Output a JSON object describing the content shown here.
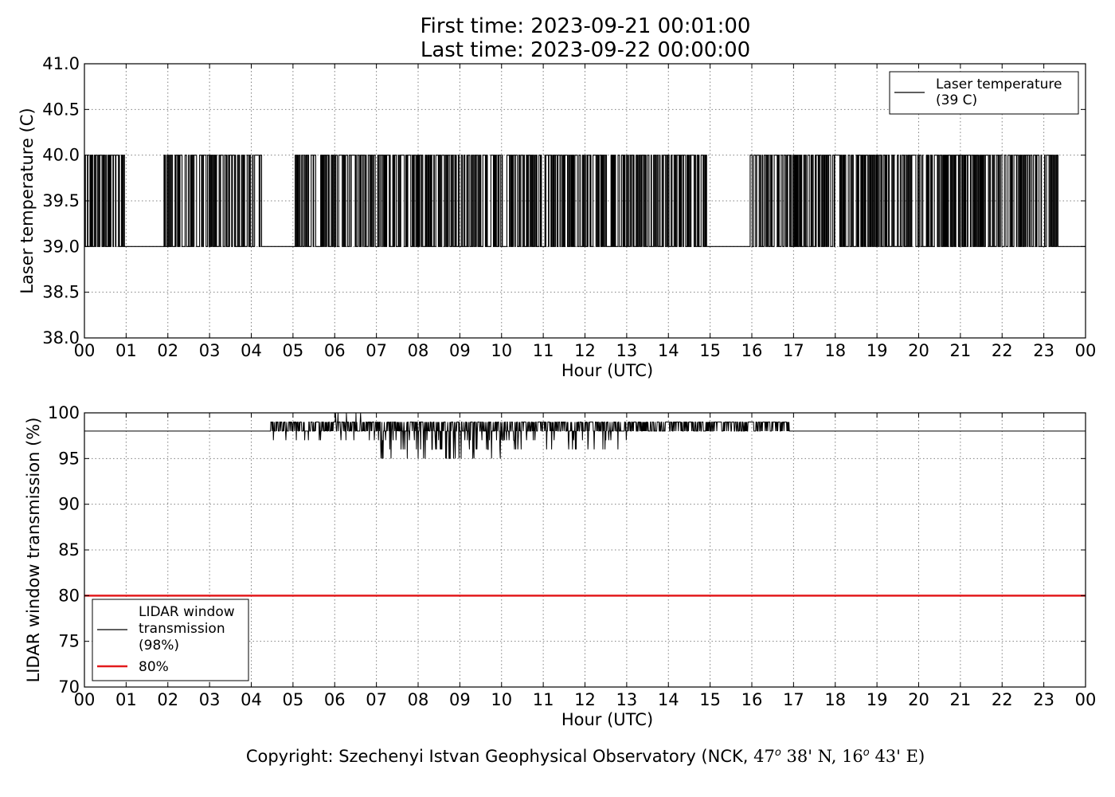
{
  "header": {
    "first_time": "First time: 2023-09-21 00:01:00",
    "last_time": "Last time: 2023-09-22 00:00:00"
  },
  "footer": {
    "copyright_prefix": "Copyright: Szechenyi Istvan Geophysical Observatory (NCK, ",
    "lat_deg": "47",
    "lat_sup": "o",
    "lat_min": " 38' N, ",
    "lon_deg": "16",
    "lon_sup": "o",
    "lon_min": " 43' E)"
  },
  "colors": {
    "line": "#000000",
    "threshold": "#e31a1c",
    "grid": "#808080"
  },
  "chart_data": [
    {
      "type": "line",
      "title": "",
      "xlabel": "Hour (UTC)",
      "ylabel": "Laser temperature (C)",
      "xlim": [
        0,
        24
      ],
      "ylim": [
        38.0,
        41.0
      ],
      "x_tick_labels": [
        "00",
        "01",
        "02",
        "03",
        "04",
        "05",
        "06",
        "07",
        "08",
        "09",
        "10",
        "11",
        "12",
        "13",
        "14",
        "15",
        "16",
        "17",
        "18",
        "19",
        "20",
        "21",
        "22",
        "23",
        "00"
      ],
      "y_ticks": [
        38.0,
        38.5,
        39.0,
        39.5,
        40.0,
        40.5,
        41.0
      ],
      "y_tick_labels": [
        "38.0",
        "38.5",
        "39.0",
        "39.5",
        "40.0",
        "40.5",
        "41.0"
      ],
      "grid": true,
      "legend_position": "top-right",
      "series": [
        {
          "name": "Laser temperature\n(39 C)",
          "legend_lines": [
            "Laser temperature",
            "(39 C)"
          ],
          "color": "#000000",
          "dense_oscillation_between": [
            39.0,
            40.0
          ],
          "baseline": 39.0,
          "active_intervals": [
            [
              0.0,
              0.95
            ],
            [
              1.9,
              4.25
            ],
            [
              5.05,
              14.95
            ],
            [
              15.95,
              23.35
            ]
          ],
          "quiet_intervals": [
            [
              0.95,
              1.9
            ],
            [
              4.25,
              5.05
            ],
            [
              14.95,
              15.95
            ],
            [
              23.35,
              24.0
            ]
          ]
        }
      ]
    },
    {
      "type": "line",
      "title": "",
      "xlabel": "Hour (UTC)",
      "ylabel": "LIDAR window transmission (%)",
      "xlim": [
        0,
        24
      ],
      "ylim": [
        70,
        100
      ],
      "x_tick_labels": [
        "00",
        "01",
        "02",
        "03",
        "04",
        "05",
        "06",
        "07",
        "08",
        "09",
        "10",
        "11",
        "12",
        "13",
        "14",
        "15",
        "16",
        "17",
        "18",
        "19",
        "20",
        "21",
        "22",
        "23",
        "00"
      ],
      "y_ticks": [
        70,
        75,
        80,
        85,
        90,
        95,
        100
      ],
      "y_tick_labels": [
        "70",
        "75",
        "80",
        "85",
        "90",
        "95",
        "100"
      ],
      "grid": true,
      "legend_position": "bottom-left",
      "series": [
        {
          "name": "LIDAR window\ntransmission\n(98%)",
          "legend_lines": [
            "LIDAR window",
            "transmission",
            "(98%)"
          ],
          "color": "#000000",
          "baseline": 98,
          "noisy_interval": [
            4.45,
            16.9
          ],
          "noise_range_by_hour": {
            "4.45-6": [
              97,
              99
            ],
            "6-7": [
              97,
              100
            ],
            "7-10": [
              95,
              99
            ],
            "10-13": [
              96,
              99
            ],
            "13-16.9": [
              98,
              99
            ]
          }
        },
        {
          "name": "80%",
          "legend_lines": [
            "80%"
          ],
          "color": "#e31a1c",
          "constant": 80
        }
      ]
    }
  ]
}
